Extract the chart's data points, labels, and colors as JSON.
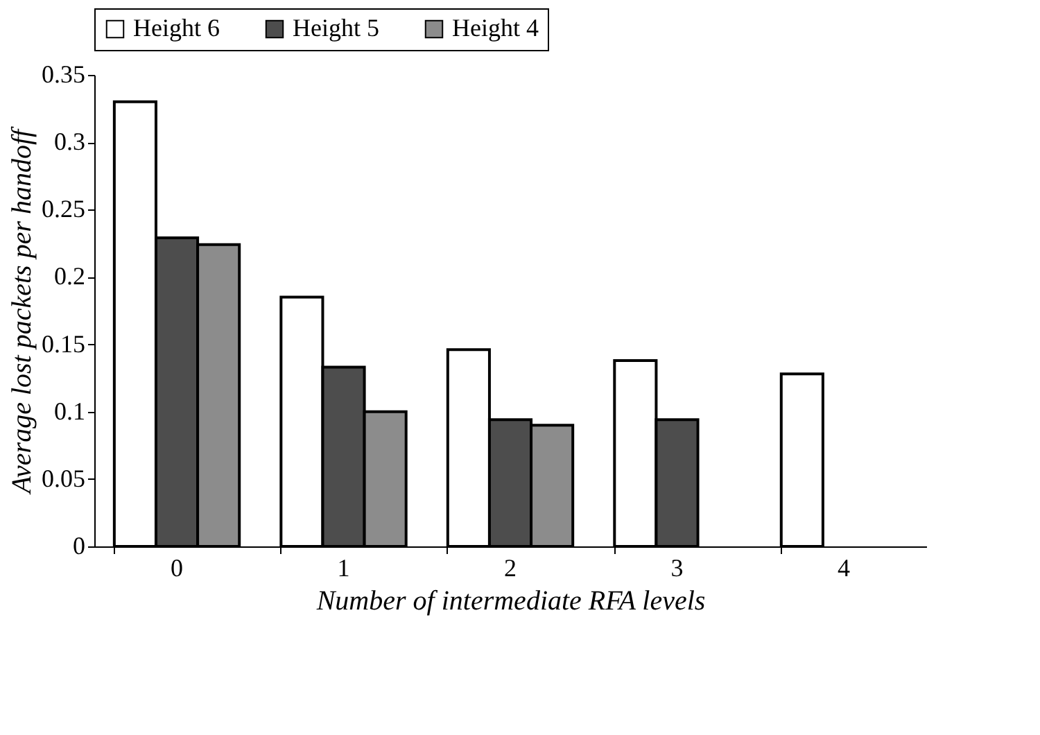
{
  "chart_data": {
    "type": "bar",
    "xlabel": "Number of intermediate RFA levels",
    "ylabel": "Average lost packets per handoff",
    "categories": [
      "0",
      "1",
      "2",
      "3",
      "4"
    ],
    "series": [
      {
        "name": "Height 6",
        "color": "#ffffff",
        "values": [
          0.33,
          0.185,
          0.146,
          0.138,
          0.128
        ]
      },
      {
        "name": "Height 5",
        "color": "#4d4d4d",
        "values": [
          0.229,
          0.133,
          0.094,
          0.094,
          null
        ]
      },
      {
        "name": "Height 4",
        "color": "#8c8c8c",
        "values": [
          0.224,
          0.1,
          0.09,
          null,
          null
        ]
      }
    ],
    "ylim": [
      0,
      0.35
    ],
    "yticks": [
      0,
      0.05,
      0.1,
      0.15,
      0.2,
      0.25,
      0.3,
      0.35
    ],
    "grid": false,
    "legend": "top"
  }
}
